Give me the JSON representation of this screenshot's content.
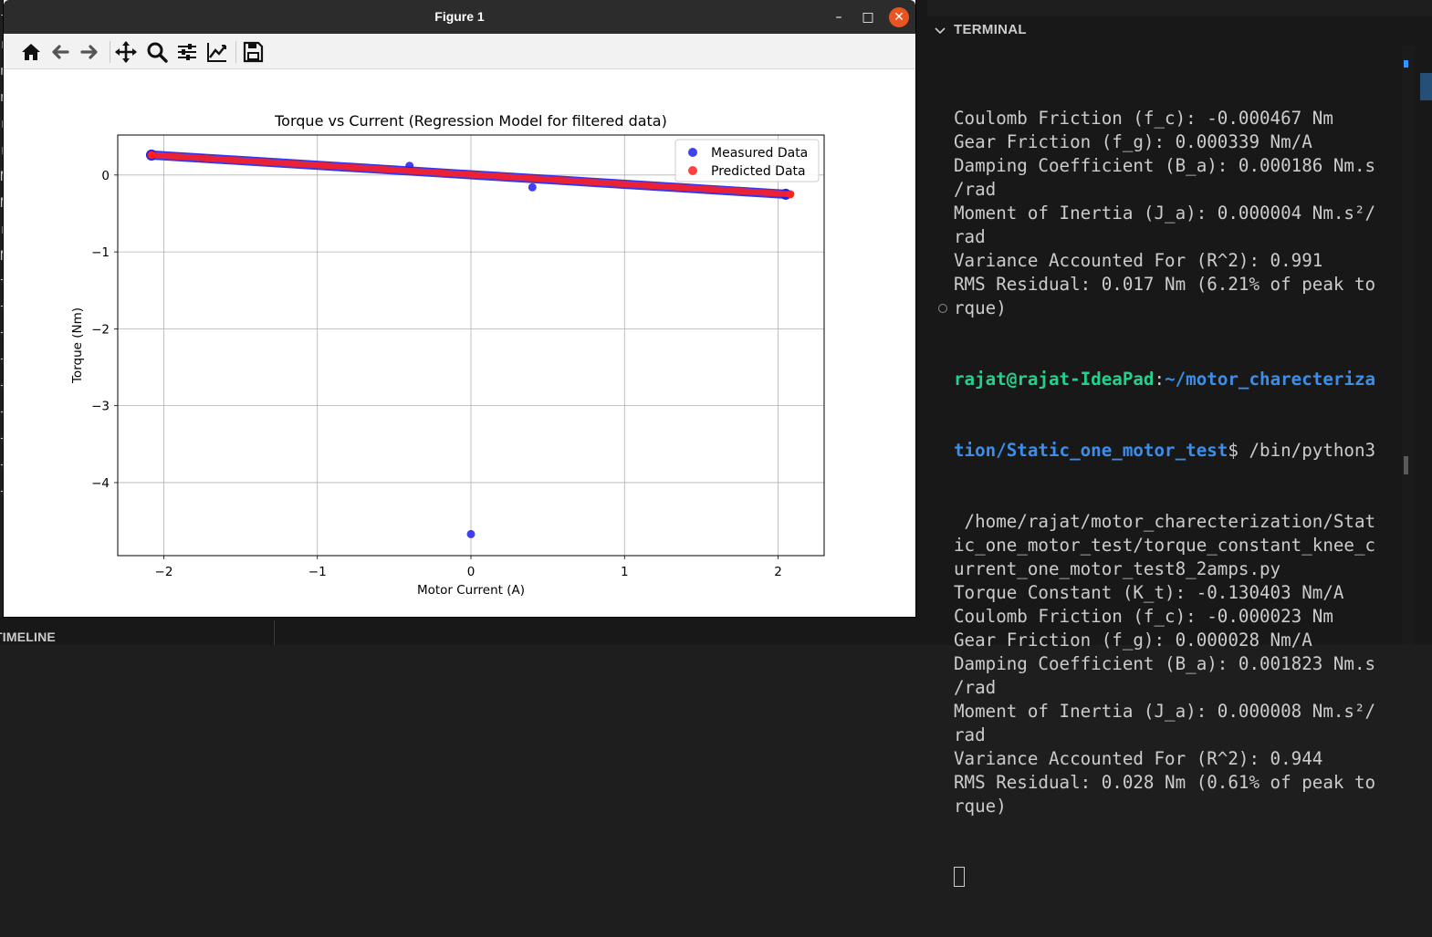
{
  "figure_window": {
    "title": "Figure 1",
    "minimize": "–",
    "maximize": "□",
    "close": "✕",
    "toolbar": [
      "home-icon",
      "back-arrow-icon",
      "forward-arrow-icon",
      "pan-move-icon",
      "zoom-magnifier-icon",
      "subplots-config-icon",
      "edit-axes-icon",
      "save-disk-icon"
    ]
  },
  "chart_data": {
    "type": "scatter",
    "title": "Torque vs Current (Regression Model for filtered data)",
    "xlabel": "Motor Current (A)",
    "ylabel": "Torque (Nm)",
    "xlim": [
      -2.3,
      2.3
    ],
    "ylim": [
      -4.95,
      0.52
    ],
    "xticks": [
      -2,
      -1,
      0,
      1,
      2
    ],
    "xtick_labels": [
      "−2",
      "−1",
      "0",
      "1",
      "2"
    ],
    "yticks": [
      0,
      -1,
      -2,
      -3,
      -4
    ],
    "ytick_labels": [
      "0",
      "−1",
      "−2",
      "−3",
      "−4"
    ],
    "grid": true,
    "legend_placement": "top-right",
    "series": [
      {
        "name": "Measured Data",
        "color": "#2020ee",
        "band": {
          "x": [
            -2.08,
            2.05
          ],
          "y": [
            0.26,
            -0.25
          ],
          "thickness": 0.06
        },
        "points": [
          {
            "x": 0.0,
            "y": -4.67
          },
          {
            "x": 0.4,
            "y": -0.16
          },
          {
            "x": -0.4,
            "y": 0.12
          },
          {
            "x": -1.75,
            "y": 0.22
          }
        ]
      },
      {
        "name": "Predicted Data",
        "color": "#ff2020",
        "band": {
          "x": [
            -2.08,
            2.08
          ],
          "y": [
            0.26,
            -0.25
          ],
          "thickness": 0.04
        }
      }
    ]
  },
  "background_editor": {
    "left_chars": [
      "f",
      "r",
      "n",
      "n",
      "r",
      "r",
      "N",
      "N",
      "r",
      "N",
      "t",
      "t",
      "t",
      "t",
      "t",
      "t",
      "t",
      "t",
      "t"
    ],
    "timeline_label": "TIMELINE"
  },
  "terminal": {
    "header": "TERMINAL",
    "lines": [
      {
        "text": "Coulomb Friction (f_c): -0.000467 Nm"
      },
      {
        "text": "Gear Friction (f_g): 0.000339 Nm/A"
      },
      {
        "text": "Damping Coefficient (B_a): 0.000186 Nm.s"
      },
      {
        "text": "/rad"
      },
      {
        "text": "Moment of Inertia (J_a): 0.000004 Nm.s²/"
      },
      {
        "text": "rad"
      },
      {
        "text": "Variance Accounted For (R^2): 0.991"
      },
      {
        "text": "RMS Residual: 0.017 Nm (6.21% of peak to"
      },
      {
        "text": "rque)"
      }
    ],
    "prompt": {
      "user": "rajat@rajat-IdeaPad",
      "sep": ":",
      "path_line1": "~/motor_charecteriza",
      "path_line2": "tion/Static_one_motor_test",
      "dollar_cmd": "$ /bin/python3"
    },
    "lines2": [
      {
        "text": " /home/rajat/motor_charecterization/Stat"
      },
      {
        "text": "ic_one_motor_test/torque_constant_knee_c"
      },
      {
        "text": "urrent_one_motor_test8_2amps.py"
      },
      {
        "text": "Torque Constant (K_t): -0.130403 Nm/A"
      },
      {
        "text": "Coulomb Friction (f_c): -0.000023 Nm"
      },
      {
        "text": "Gear Friction (f_g): 0.000028 Nm/A"
      },
      {
        "text": "Damping Coefficient (B_a): 0.001823 Nm.s"
      },
      {
        "text": "/rad"
      },
      {
        "text": "Moment of Inertia (J_a): 0.000008 Nm.s²/"
      },
      {
        "text": "rad"
      },
      {
        "text": "Variance Accounted For (R^2): 0.944"
      },
      {
        "text": "RMS Residual: 0.028 Nm (0.61% of peak to"
      },
      {
        "text": "rque)"
      }
    ]
  }
}
